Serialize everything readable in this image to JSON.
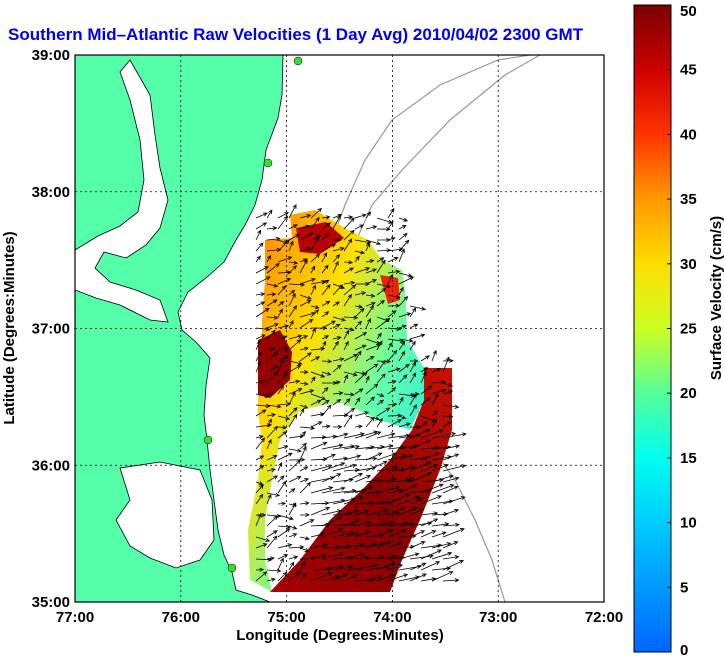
{
  "chart_data": {
    "type": "map-vector-field",
    "title": "Southern Mid–Atlantic Raw Velocities (1 Day Avg) 2010/04/02 2300 GMT",
    "xlabel": "Longitude (Degrees:Minutes)",
    "ylabel": "Latitude (Degrees:Minutes)",
    "x_ticks": [
      "77:00",
      "76:00",
      "75:00",
      "74:00",
      "73:00",
      "72:00"
    ],
    "y_ticks": [
      "39:00",
      "38:00",
      "37:00",
      "36:00",
      "35:00"
    ],
    "xlim": [
      -77,
      -72
    ],
    "ylim": [
      35,
      39
    ],
    "grid": "dotted",
    "colorbar": {
      "label": "Surface Velocity (cm/s)",
      "range": [
        0,
        50
      ],
      "ticks": [
        "0",
        "5",
        "10",
        "15",
        "20",
        "25",
        "30",
        "35",
        "40",
        "45",
        "50"
      ],
      "colormap": "jet"
    },
    "land_color": "#55ffaa",
    "station_color": "#33dd33",
    "vector_color": "#000000"
  }
}
